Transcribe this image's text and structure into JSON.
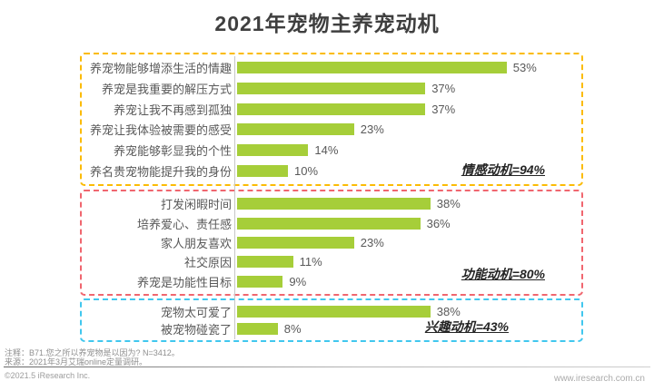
{
  "title": "2021年宠物主养宠动机",
  "colors": {
    "bar_green": "#a6ce39",
    "group1_border": "#fbbb05",
    "group2_border": "#f0666f",
    "group3_border": "#41c7ee",
    "label_gray": "#595959",
    "title_gray": "#3f3f3f"
  },
  "chart_data": {
    "type": "bar",
    "orientation": "horizontal",
    "unit": "%",
    "xlim": [
      0,
      60
    ],
    "title": "2021年宠物主养宠动机",
    "groups": [
      {
        "name": "情感动机",
        "summary_label": "情感动机=94%",
        "border_color": "#fbbb05",
        "categories": [
          "养宠物能够增添生活的情趣",
          "养宠是我重要的解压方式",
          "养宠让我不再感到孤独",
          "养宠让我体验被需要的感受",
          "养宠能够彰显我的个性",
          "养名贵宠物能提升我的身份"
        ],
        "values": [
          53,
          37,
          37,
          23,
          14,
          10
        ]
      },
      {
        "name": "功能动机",
        "summary_label": "功能动机=80%",
        "border_color": "#f0666f",
        "categories": [
          "打发闲暇时间",
          "培养爱心、责任感",
          "家人朋友喜欢",
          "社交原因",
          "养宠是功能性目标"
        ],
        "values": [
          38,
          36,
          23,
          11,
          9
        ]
      },
      {
        "name": "兴趣动机",
        "summary_label": "兴趣动机=43%",
        "border_color": "#41c7ee",
        "categories": [
          "宠物太可爱了",
          "被宠物碰瓷了"
        ],
        "values": [
          38,
          8
        ]
      }
    ]
  },
  "footer": {
    "note1": "注释：B71.您之所以养宠物是以因为? N=3412。",
    "note2": "来源：2021年3月艾瑞online定量调研。",
    "copyright": "©2021.5 iResearch Inc.",
    "website": "www.iresearch.com.cn"
  }
}
